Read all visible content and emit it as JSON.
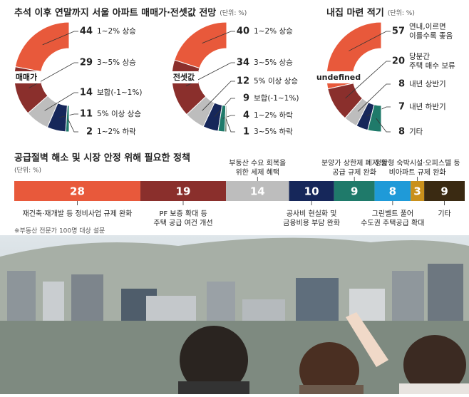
{
  "chart_data": [
    {
      "type": "pie",
      "title": "추석 이후 연말까지 서울 아파트 매매가·전셋값 전망",
      "unit": "(단위: %)",
      "center_label": "매매가",
      "categories": [
        "1~2% 상승",
        "3~5% 상승",
        "보합(-1~1%)",
        "5% 이상 상승",
        "1~2% 하락"
      ],
      "values": [
        44,
        29,
        14,
        11,
        2
      ],
      "colors": [
        "#e8593b",
        "#8a2f2c",
        "#bdbdbd",
        "#16275a",
        "#1f7a6a"
      ]
    },
    {
      "type": "pie",
      "center_label": "전셋값",
      "categories": [
        "1~2% 상승",
        "3~5% 상승",
        "5% 이상 상승",
        "보합(-1~1%)",
        "1~2% 하락",
        "3~5% 하락"
      ],
      "values": [
        40,
        34,
        12,
        9,
        4,
        1
      ],
      "colors": [
        "#e8593b",
        "#8a2f2c",
        "#bdbdbd",
        "#16275a",
        "#1f7a6a",
        "#5a6b55"
      ]
    },
    {
      "type": "pie",
      "title": "내집 마련 적기",
      "unit": "(단위: %)",
      "categories": [
        "연내,이르면\n이를수록 좋음",
        "당분간\n주택 매수 보류",
        "내년 상반기",
        "내년 하반기",
        "기타"
      ],
      "values": [
        57,
        20,
        8,
        7,
        8
      ],
      "colors": [
        "#e8593b",
        "#8a2f2c",
        "#bdbdbd",
        "#16275a",
        "#1f7a6a"
      ]
    },
    {
      "type": "bar",
      "title": "공급절벽 해소 및 시장 안정 위해 필요한 정책",
      "unit": "(단위: %)",
      "note": "※부동산 전문가 100명 대상 설문",
      "categories": [
        "재건축·재개발 등 정비사업 규제 완화",
        "PF 보증 확대 등\n주택 공급 여건 개선",
        "부동산 수요 회복을\n위한 세제 혜택",
        "공사비 현실화 및\n금융비용 부담 완화",
        "분양가 상한제 폐지 등\n공급 규제 완화",
        "그린벨트 풀어\n수도권 주택공급 확대",
        "생활형 숙박시설·오피스텔 등\n비아파트 규제 완화",
        "기타"
      ],
      "values": [
        28,
        19,
        14,
        10,
        9,
        8,
        3,
        9
      ],
      "colors": [
        "#e8593b",
        "#8a2f2c",
        "#bdbdbd",
        "#16275a",
        "#1f7a6a",
        "#1f9ad8",
        "#c9901c",
        "#3a2a12"
      ]
    }
  ]
}
